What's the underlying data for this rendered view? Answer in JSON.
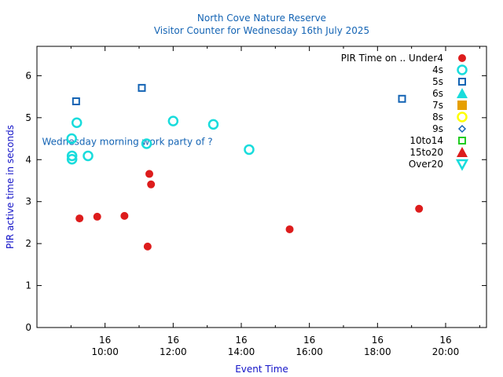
{
  "chart_data": {
    "type": "scatter",
    "title": "North Cove Nature Reserve",
    "subtitle": "Visitor Counter for Wednesday 16th July 2025",
    "xlabel": "Event Time",
    "ylabel": "PIR active time in seconds",
    "xlim": [
      8.0,
      21.2
    ],
    "ylim": [
      0,
      6.7
    ],
    "x_unit": "hours",
    "x_ticks": [
      {
        "value": 10,
        "date": "16",
        "time": "10:00"
      },
      {
        "value": 12,
        "date": "16",
        "time": "12:00"
      },
      {
        "value": 14,
        "date": "16",
        "time": "14:00"
      },
      {
        "value": 16,
        "date": "16",
        "time": "16:00"
      },
      {
        "value": 18,
        "date": "16",
        "time": "18:00"
      },
      {
        "value": 20,
        "date": "16",
        "time": "20:00"
      }
    ],
    "x_minor_ticks": [
      9,
      11,
      13,
      15,
      17,
      19,
      21
    ],
    "y_ticks": [
      0,
      1,
      2,
      3,
      4,
      5,
      6
    ],
    "legend_title": "PIR Time on ..",
    "legend_position": "top-right",
    "series": [
      {
        "name": "Under4",
        "marker": "circle-filled",
        "color": "#dd1c1c",
        "points": [
          [
            9.25,
            2.6
          ],
          [
            9.77,
            2.64
          ],
          [
            10.57,
            2.66
          ],
          [
            11.25,
            1.93
          ],
          [
            11.3,
            3.66
          ],
          [
            11.35,
            3.41
          ],
          [
            15.42,
            2.34
          ],
          [
            19.22,
            2.83
          ]
        ]
      },
      {
        "name": "4s",
        "marker": "circle-open",
        "color": "#19dcdc",
        "points": [
          [
            9.02,
            4.5
          ],
          [
            9.03,
            4.09
          ],
          [
            9.03,
            4.01
          ],
          [
            9.17,
            4.88
          ],
          [
            9.5,
            4.09
          ],
          [
            11.22,
            4.38
          ],
          [
            12.0,
            4.92
          ],
          [
            13.18,
            4.84
          ],
          [
            14.23,
            4.24
          ]
        ]
      },
      {
        "name": "5s",
        "marker": "square-open",
        "color": "#1464b4",
        "points": [
          [
            9.15,
            5.39
          ],
          [
            11.08,
            5.71
          ],
          [
            18.72,
            5.45
          ]
        ]
      },
      {
        "name": "6s",
        "marker": "triangle-filled",
        "color": "#19dcdc",
        "points": []
      },
      {
        "name": "7s",
        "marker": "square-filled",
        "color": "#e69f00",
        "points": []
      },
      {
        "name": "8s",
        "marker": "circle-open",
        "color": "#ffff00",
        "points": []
      },
      {
        "name": "9s",
        "marker": "diamond-open",
        "color": "#1464b4",
        "points": []
      },
      {
        "name": "10to14",
        "marker": "square-open",
        "color": "#22cc22",
        "points": []
      },
      {
        "name": "15to20",
        "marker": "triangle-filled",
        "color": "#dd1c1c",
        "points": []
      },
      {
        "name": "Over20",
        "marker": "triangle-down-open",
        "color": "#19dcdc",
        "points": []
      }
    ],
    "annotations": [
      {
        "text": "Wednesday morning work party of ?",
        "x": 8.15,
        "y": 4.35,
        "color": "#1464b4"
      }
    ]
  },
  "colors": {
    "title": "#1464b4",
    "axis_label": "#1414c8",
    "frame": "#000000"
  }
}
